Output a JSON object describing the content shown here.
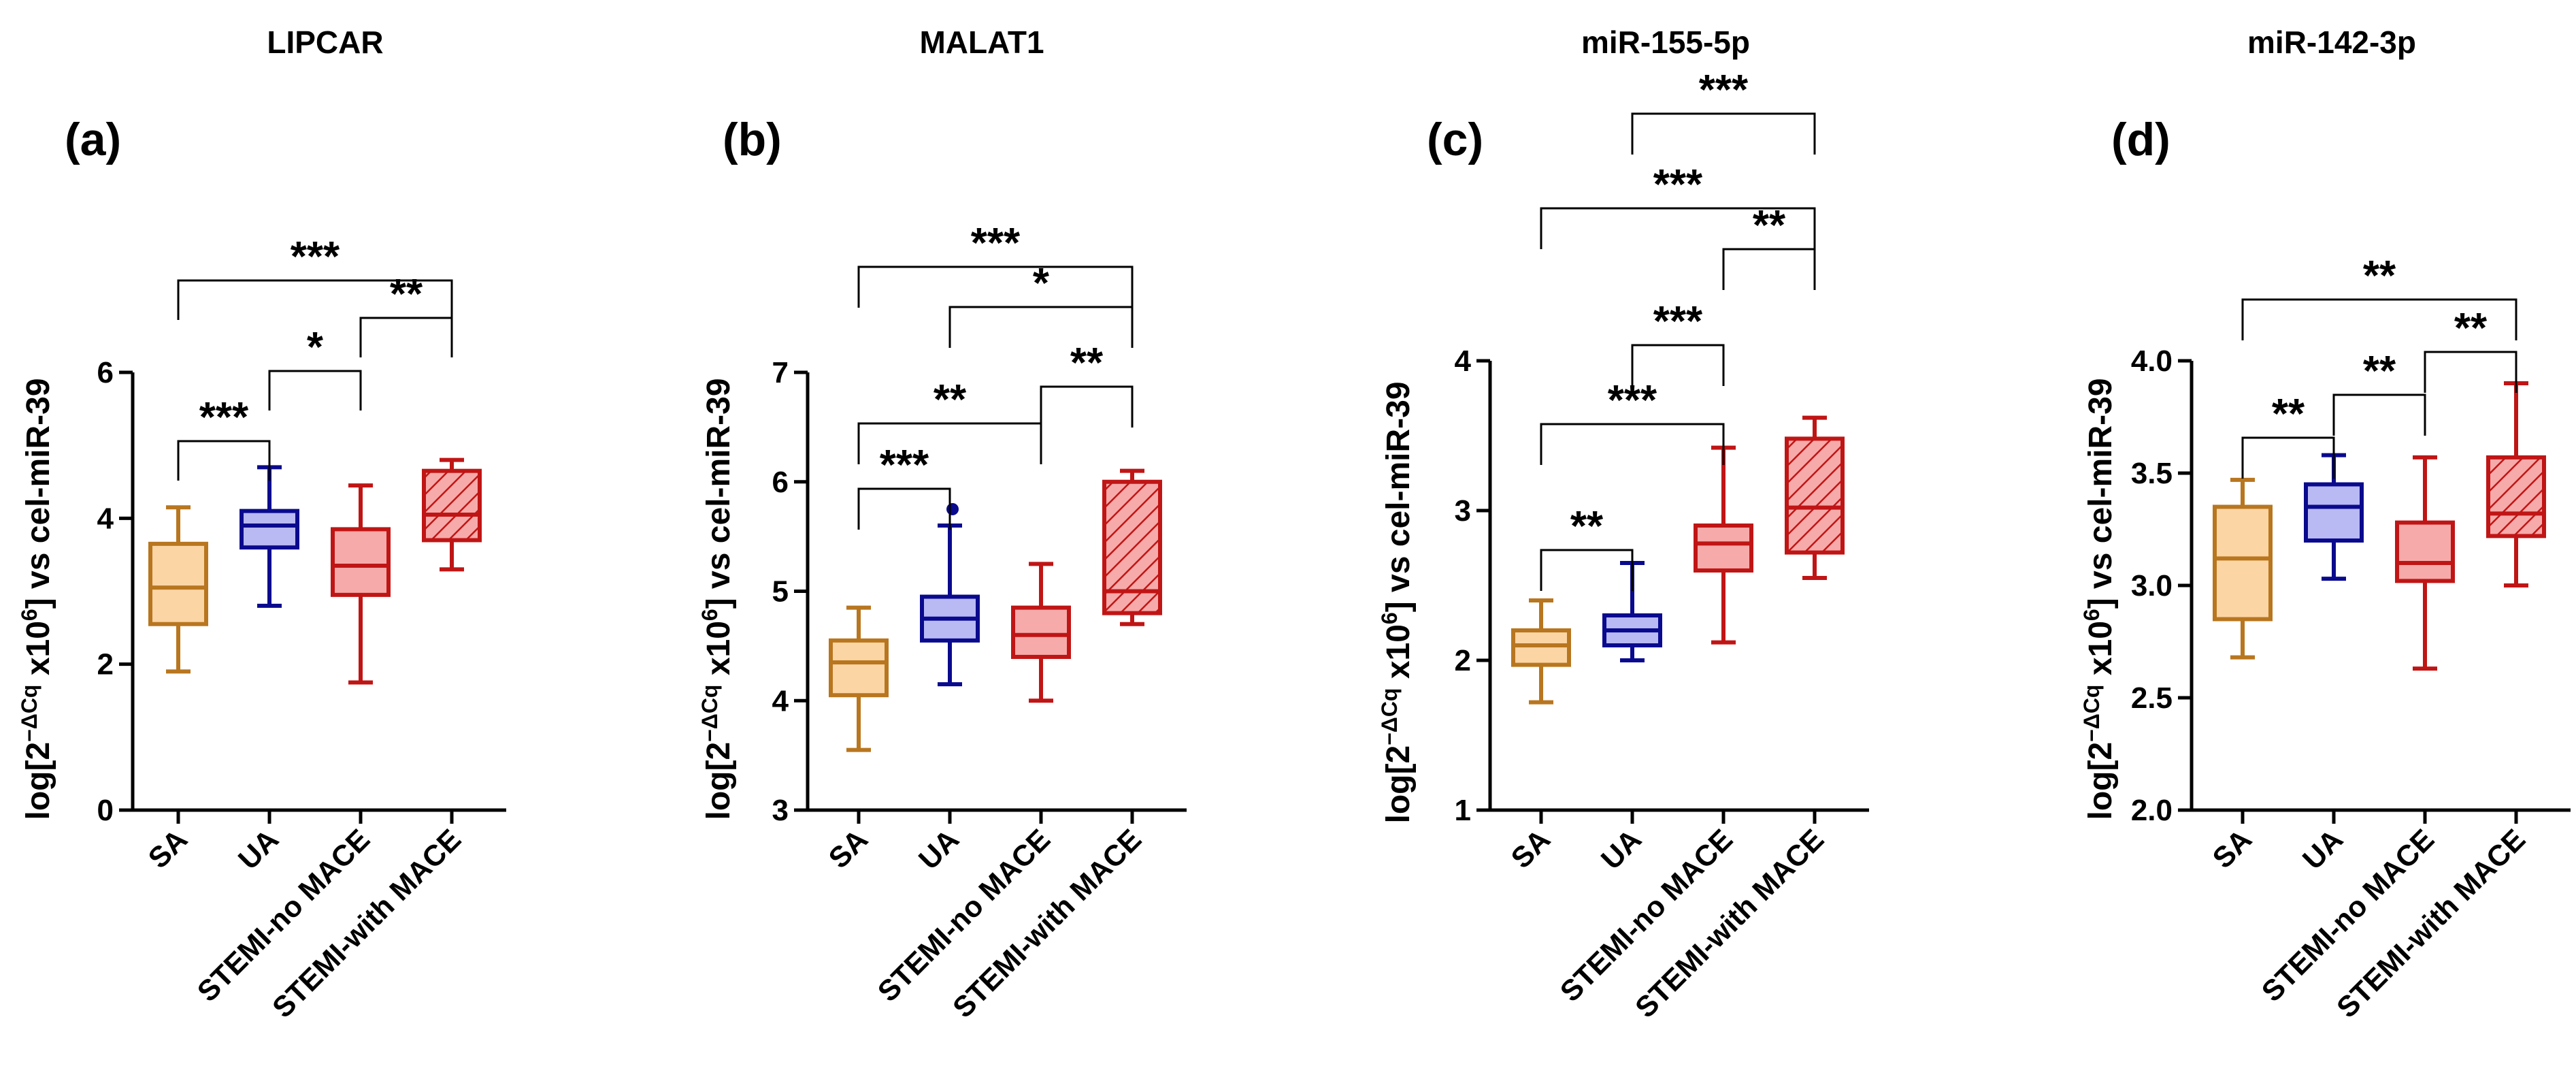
{
  "colors": {
    "SA": {
      "stroke": "#b8761f",
      "fill": "#fcd5a5"
    },
    "UA": {
      "stroke": "#0a0a8e",
      "fill": "#b9b9f4"
    },
    "STEMI-no MACE": {
      "stroke": "#c01515",
      "fill": "#f7aaaa"
    },
    "STEMI-with MACE": {
      "stroke": "#c01515",
      "fill": "#f7aaaa",
      "hatched": true
    }
  },
  "chart_data": [
    {
      "type": "boxplot",
      "panel": "(a)",
      "title": "LIPCAR",
      "ylabel": "log[2^-ΔCq x10^6] vs cel-miR-39",
      "ylim": [
        0,
        6
      ],
      "yticks": [
        "0",
        "2",
        "4",
        "6"
      ],
      "categories": [
        "SA",
        "UA",
        "STEMI-no MACE",
        "STEMI-with MACE"
      ],
      "boxes": [
        {
          "min": 1.9,
          "q1": 2.55,
          "median": 3.05,
          "q3": 3.65,
          "max": 4.15
        },
        {
          "min": 2.8,
          "q1": 3.6,
          "median": 3.9,
          "q3": 4.1,
          "max": 4.7
        },
        {
          "min": 1.75,
          "q1": 2.95,
          "median": 3.35,
          "q3": 3.85,
          "max": 4.45
        },
        {
          "min": 3.3,
          "q1": 3.7,
          "median": 4.05,
          "q3": 4.65,
          "max": 4.8
        }
      ],
      "outliers": [],
      "significance": [
        {
          "from": 0,
          "to": 1,
          "label": "***"
        },
        {
          "from": 1,
          "to": 2,
          "label": "*"
        },
        {
          "from": 2,
          "to": 3,
          "label": "**"
        },
        {
          "from": 0,
          "to": 3,
          "label": "***"
        }
      ]
    },
    {
      "type": "boxplot",
      "panel": "(b)",
      "title": "MALAT1",
      "ylabel": "log[2^-ΔCq x10^6] vs cel-miR-39",
      "ylim": [
        3,
        7
      ],
      "yticks": [
        "3",
        "4",
        "5",
        "6",
        "7"
      ],
      "categories": [
        "SA",
        "UA",
        "STEMI-no MACE",
        "STEMI-with MACE"
      ],
      "boxes": [
        {
          "min": 3.55,
          "q1": 4.05,
          "median": 4.35,
          "q3": 4.55,
          "max": 4.85
        },
        {
          "min": 4.15,
          "q1": 4.55,
          "median": 4.75,
          "q3": 4.95,
          "max": 5.6
        },
        {
          "min": 4.0,
          "q1": 4.4,
          "median": 4.6,
          "q3": 4.85,
          "max": 5.25
        },
        {
          "min": 4.7,
          "q1": 4.8,
          "median": 5.0,
          "q3": 6.0,
          "max": 6.1
        }
      ],
      "outliers": [
        {
          "group": 1,
          "value": 5.75
        }
      ],
      "significance": [
        {
          "from": 0,
          "to": 1,
          "label": "***"
        },
        {
          "from": 0,
          "to": 2,
          "label": "**"
        },
        {
          "from": 2,
          "to": 3,
          "label": "**"
        },
        {
          "from": 1,
          "to": 3,
          "label": "*"
        },
        {
          "from": 0,
          "to": 3,
          "label": "***"
        }
      ]
    },
    {
      "type": "boxplot",
      "panel": "(c)",
      "title": "miR-155-5p",
      "ylabel": "log[2^-ΔCq x10^6] vs cel-miR-39",
      "ylim": [
        1,
        4
      ],
      "yticks": [
        "1",
        "2",
        "3",
        "4"
      ],
      "categories": [
        "SA",
        "UA",
        "STEMI-no MACE",
        "STEMI-with MACE"
      ],
      "boxes": [
        {
          "min": 1.72,
          "q1": 1.97,
          "median": 2.1,
          "q3": 2.2,
          "max": 2.4
        },
        {
          "min": 2.0,
          "q1": 2.1,
          "median": 2.2,
          "q3": 2.3,
          "max": 2.65
        },
        {
          "min": 2.12,
          "q1": 2.6,
          "median": 2.78,
          "q3": 2.9,
          "max": 3.42
        },
        {
          "min": 2.55,
          "q1": 2.72,
          "median": 3.02,
          "q3": 3.48,
          "max": 3.62
        }
      ],
      "outliers": [],
      "significance": [
        {
          "from": 0,
          "to": 1,
          "label": "**"
        },
        {
          "from": 0,
          "to": 2,
          "label": "***"
        },
        {
          "from": 1,
          "to": 2,
          "label": "***"
        },
        {
          "from": 2,
          "to": 3,
          "label": "**"
        },
        {
          "from": 0,
          "to": 3,
          "label": "***"
        },
        {
          "from": 1,
          "to": 3,
          "label": "***"
        }
      ]
    },
    {
      "type": "boxplot",
      "panel": "(d)",
      "title": "miR-142-3p",
      "ylabel": "log[2^-ΔCq x10^6] vs cel-miR-39",
      "ylim": [
        2.0,
        4.0
      ],
      "yticks": [
        "2.0",
        "2.5",
        "3.0",
        "3.5",
        "4.0"
      ],
      "categories": [
        "SA",
        "UA",
        "STEMI-no MACE",
        "STEMI-with MACE"
      ],
      "boxes": [
        {
          "min": 2.68,
          "q1": 2.85,
          "median": 3.12,
          "q3": 3.35,
          "max": 3.47
        },
        {
          "min": 3.03,
          "q1": 3.2,
          "median": 3.35,
          "q3": 3.45,
          "max": 3.58
        },
        {
          "min": 2.63,
          "q1": 3.02,
          "median": 3.1,
          "q3": 3.28,
          "max": 3.57
        },
        {
          "min": 3.0,
          "q1": 3.22,
          "median": 3.32,
          "q3": 3.57,
          "max": 3.9
        }
      ],
      "outliers": [],
      "significance": [
        {
          "from": 0,
          "to": 1,
          "label": "**"
        },
        {
          "from": 1,
          "to": 2,
          "label": "**"
        },
        {
          "from": 2,
          "to": 3,
          "label": "**"
        },
        {
          "from": 0,
          "to": 3,
          "label": "**"
        }
      ]
    }
  ]
}
